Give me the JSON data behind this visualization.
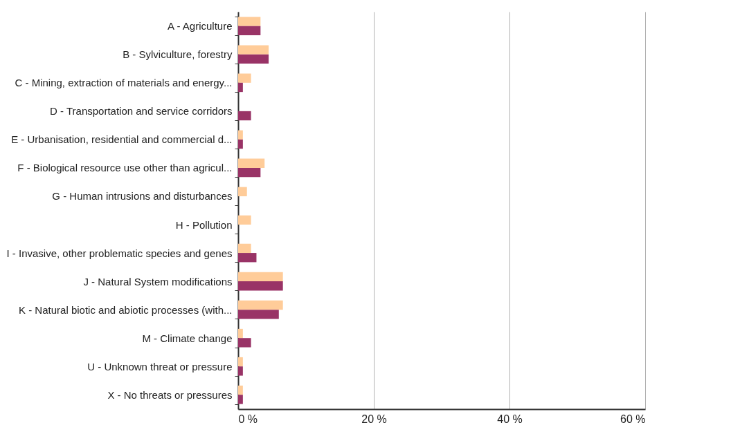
{
  "chart_data": {
    "type": "bar",
    "orientation": "horizontal",
    "categories": [
      "A - Agriculture",
      "B - Sylviculture, forestry",
      "C - Mining, extraction of materials and energy...",
      "D - Transportation and service corridors",
      "E - Urbanisation, residential and commercial d...",
      "F - Biological resource use other than agricul...",
      "G - Human intrusions and disturbances",
      "H - Pollution",
      "I - Invasive, other problematic species and genes",
      "J - Natural System modifications",
      "K - Natural biotic and abiotic processes (with...",
      "M - Climate change",
      "U - Unknown threat or pressure",
      "X - No threats or pressures"
    ],
    "series": [
      {
        "color": "#ffcc99",
        "values": [
          3.3,
          4.5,
          1.9,
          null,
          0.7,
          3.9,
          1.3,
          1.9,
          1.9,
          6.6,
          6.6,
          0.7,
          0.7,
          0.7
        ]
      },
      {
        "color": "#993366",
        "values": [
          3.3,
          4.5,
          0.7,
          1.9,
          0.7,
          3.3,
          null,
          null,
          2.7,
          6.6,
          6.0,
          1.9,
          0.7,
          0.7
        ]
      }
    ],
    "xlim": [
      0,
      60
    ],
    "xticks": [
      {
        "value": 0,
        "label": "0 %"
      },
      {
        "value": 20,
        "label": "20 %"
      },
      {
        "value": 40,
        "label": "40 %"
      },
      {
        "value": 60,
        "label": "60 %"
      }
    ],
    "grid": "x"
  }
}
